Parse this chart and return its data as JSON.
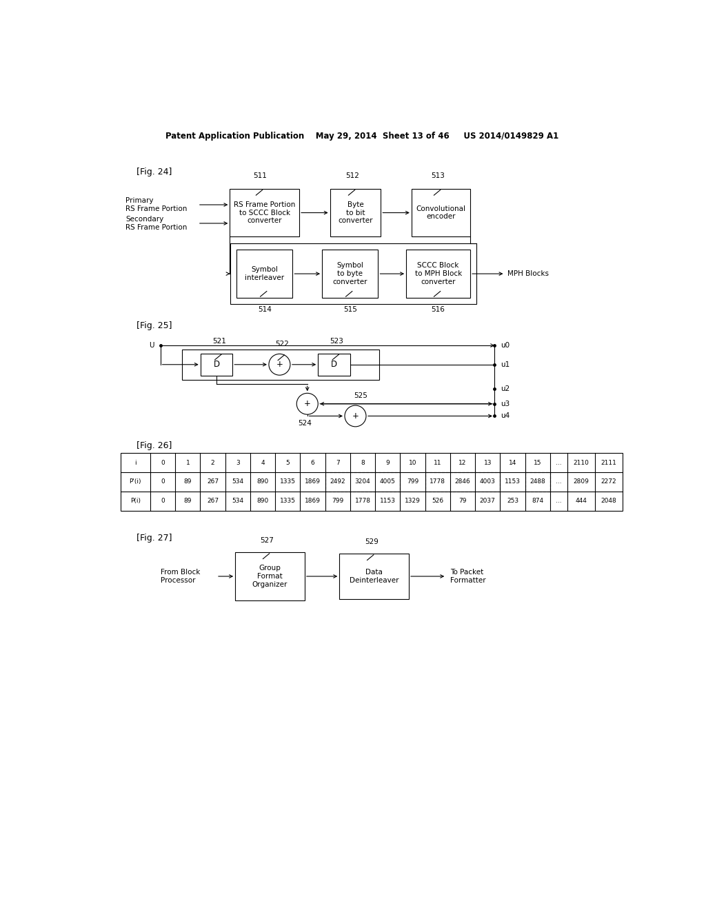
{
  "header": "Patent Application Publication    May 29, 2014  Sheet 13 of 46     US 2014/0149829 A1",
  "fig24_label": "[Fig. 24]",
  "fig25_label": "[Fig. 25]",
  "fig26_label": "[Fig. 26]",
  "fig27_label": "[Fig. 27]",
  "bg_color": "#ffffff",
  "fig26_table_header": [
    "i",
    "0",
    "1",
    "2",
    "3",
    "4",
    "5",
    "6",
    "7",
    "8",
    "9",
    "10",
    "11",
    "12",
    "13",
    "14",
    "15",
    "...",
    "2110",
    "2111"
  ],
  "fig26_row1_label": "P'(i)",
  "fig26_row1": [
    "0",
    "89",
    "267",
    "534",
    "890",
    "1335",
    "1869",
    "2492",
    "3204",
    "4005",
    "799",
    "1778",
    "2846",
    "4003",
    "1153",
    "2488",
    "...",
    "2809",
    "2272"
  ],
  "fig26_row2_label": "P(i)",
  "fig26_row2": [
    "0",
    "89",
    "267",
    "534",
    "890",
    "1335",
    "1869",
    "799",
    "1778",
    "1153",
    "1329",
    "526",
    "79",
    "2037",
    "253",
    "874",
    "...",
    "444",
    "2048"
  ]
}
